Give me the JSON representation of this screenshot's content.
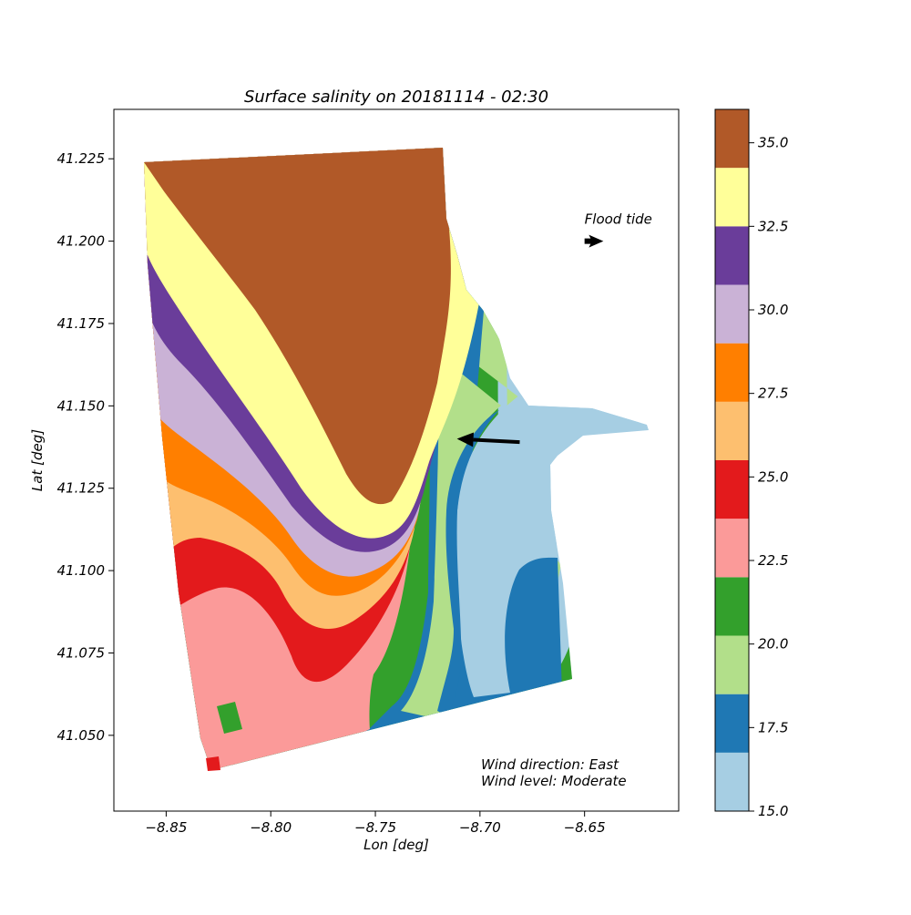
{
  "chart_data": {
    "type": "heatmap",
    "title": "Surface salinity on 20181114 - 02:30",
    "xlabel": "Lon [deg]",
    "ylabel": "Lat [deg]",
    "xlim": [
      -8.875,
      -8.605
    ],
    "ylim": [
      41.027,
      41.24
    ],
    "x_ticks": [
      {
        "value": -8.85,
        "label": "−8.85"
      },
      {
        "value": -8.8,
        "label": "−8.80"
      },
      {
        "value": -8.75,
        "label": "−8.75"
      },
      {
        "value": -8.7,
        "label": "−8.70"
      },
      {
        "value": -8.65,
        "label": "−8.65"
      }
    ],
    "y_ticks": [
      {
        "value": 41.225,
        "label": "41.225"
      },
      {
        "value": 41.2,
        "label": "41.200"
      },
      {
        "value": 41.175,
        "label": "41.175"
      },
      {
        "value": 41.15,
        "label": "41.150"
      },
      {
        "value": 41.125,
        "label": "41.125"
      },
      {
        "value": 41.1,
        "label": "41.100"
      },
      {
        "value": 41.075,
        "label": "41.075"
      },
      {
        "value": 41.05,
        "label": "41.050"
      }
    ],
    "colorbar": {
      "range": [
        15.0,
        36.0
      ],
      "levels": [
        {
          "from": 15.0,
          "to": 16.75,
          "color": "#a6cee3"
        },
        {
          "from": 16.75,
          "to": 18.5,
          "color": "#1f78b4"
        },
        {
          "from": 18.5,
          "to": 20.25,
          "color": "#b2df8a"
        },
        {
          "from": 20.25,
          "to": 22.0,
          "color": "#33a02c"
        },
        {
          "from": 22.0,
          "to": 23.75,
          "color": "#fb9a99"
        },
        {
          "from": 23.75,
          "to": 25.5,
          "color": "#e31a1c"
        },
        {
          "from": 25.5,
          "to": 27.25,
          "color": "#fdbf6f"
        },
        {
          "from": 27.25,
          "to": 29.0,
          "color": "#ff7f00"
        },
        {
          "from": 29.0,
          "to": 30.75,
          "color": "#cab2d6"
        },
        {
          "from": 30.75,
          "to": 32.5,
          "color": "#6a3d9a"
        },
        {
          "from": 32.5,
          "to": 34.25,
          "color": "#ffff99"
        },
        {
          "from": 34.25,
          "to": 36.0,
          "color": "#b15928"
        }
      ],
      "ticks": [
        {
          "value": 15.0,
          "label": "15.0"
        },
        {
          "value": 17.5,
          "label": "17.5"
        },
        {
          "value": 20.0,
          "label": "20.0"
        },
        {
          "value": 22.5,
          "label": "22.5"
        },
        {
          "value": 25.0,
          "label": "25.0"
        },
        {
          "value": 27.5,
          "label": "27.5"
        },
        {
          "value": 30.0,
          "label": "30.0"
        },
        {
          "value": 32.5,
          "label": "32.5"
        },
        {
          "value": 35.0,
          "label": "35.0"
        }
      ]
    },
    "annotations": {
      "flood_tide": {
        "label": "Flood tide",
        "arrow_from": [
          -8.65,
          41.2
        ],
        "arrow_to": [
          -8.641,
          41.2
        ]
      },
      "wind_arrow": {
        "from": [
          -8.681,
          41.139
        ],
        "to": [
          -8.711,
          41.14
        ]
      },
      "wind_direction": "Wind direction: East",
      "wind_level": "Wind level: Moderate"
    },
    "grid": false,
    "legend": "colorbar-right"
  }
}
